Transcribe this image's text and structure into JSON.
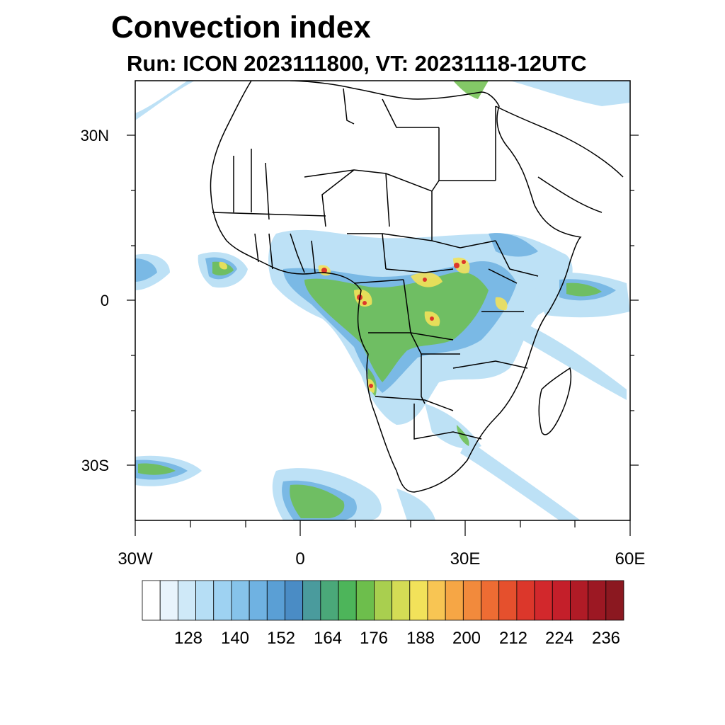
{
  "title": "Convection index",
  "subtitle": "Run: ICON 2023111800,  VT: 20231118-12UTC",
  "axes": {
    "lat_labels": [
      "30N",
      "0",
      "30S"
    ],
    "lon_labels": [
      "30W",
      "0",
      "30E",
      "60E"
    ]
  },
  "colorbar": {
    "colors": [
      "#ffffff",
      "#e8f4fc",
      "#cfe9f8",
      "#b6def5",
      "#9ed2f2",
      "#86c3ea",
      "#6fb2e2",
      "#5a9fd5",
      "#4a8cc5",
      "#4a9b9d",
      "#4aa879",
      "#4db55a",
      "#6dbe4c",
      "#a9cf4f",
      "#d4dc55",
      "#f2e25a",
      "#f8c553",
      "#f6a645",
      "#f28a3c",
      "#ee6c33",
      "#e5502d",
      "#dc372b",
      "#d2282c",
      "#c41f2a",
      "#b01b26",
      "#9c1823",
      "#8b1820"
    ],
    "labels": [
      "128",
      "140",
      "152",
      "164",
      "176",
      "188",
      "200",
      "212",
      "224",
      "236"
    ]
  }
}
